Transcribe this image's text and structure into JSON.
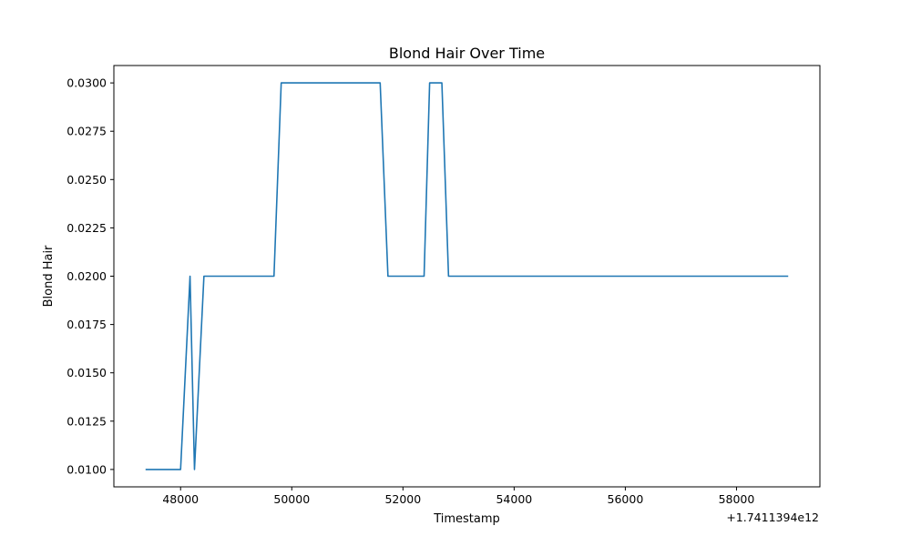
{
  "chart_data": {
    "type": "line",
    "title": "Blond Hair Over Time",
    "xlabel": "Timestamp",
    "ylabel": "Blond Hair",
    "x_offset_label": "+1.7411394e12",
    "xlim": [
      46800,
      59500
    ],
    "ylim": [
      0.0091,
      0.0309
    ],
    "x_ticks": [
      {
        "value": 48000,
        "label": "48000"
      },
      {
        "value": 50000,
        "label": "50000"
      },
      {
        "value": 52000,
        "label": "52000"
      },
      {
        "value": 54000,
        "label": "54000"
      },
      {
        "value": 56000,
        "label": "56000"
      },
      {
        "value": 58000,
        "label": "58000"
      }
    ],
    "y_ticks": [
      {
        "value": 0.01,
        "label": "0.0100"
      },
      {
        "value": 0.0125,
        "label": "0.0125"
      },
      {
        "value": 0.015,
        "label": "0.0150"
      },
      {
        "value": 0.0175,
        "label": "0.0175"
      },
      {
        "value": 0.02,
        "label": "0.0200"
      },
      {
        "value": 0.0225,
        "label": "0.0225"
      },
      {
        "value": 0.025,
        "label": "0.0250"
      },
      {
        "value": 0.0275,
        "label": "0.0275"
      },
      {
        "value": 0.03,
        "label": "0.0300"
      }
    ],
    "grid": false,
    "series": [
      {
        "color": "#1f77b4",
        "x": [
          47370,
          47500,
          47750,
          48000,
          48170,
          48250,
          48420,
          48600,
          49000,
          49400,
          49680,
          49810,
          50200,
          50600,
          51000,
          51400,
          51590,
          51730,
          52000,
          52200,
          52380,
          52480,
          52600,
          52700,
          52820,
          53200,
          54000,
          55000,
          56000,
          57000,
          58000,
          58930
        ],
        "y": [
          0.01,
          0.01,
          0.01,
          0.01,
          0.02,
          0.01,
          0.02,
          0.02,
          0.02,
          0.02,
          0.02,
          0.03,
          0.03,
          0.03,
          0.03,
          0.03,
          0.03,
          0.02,
          0.02,
          0.02,
          0.02,
          0.03,
          0.03,
          0.03,
          0.02,
          0.02,
          0.02,
          0.02,
          0.02,
          0.02,
          0.02,
          0.02
        ]
      }
    ]
  }
}
